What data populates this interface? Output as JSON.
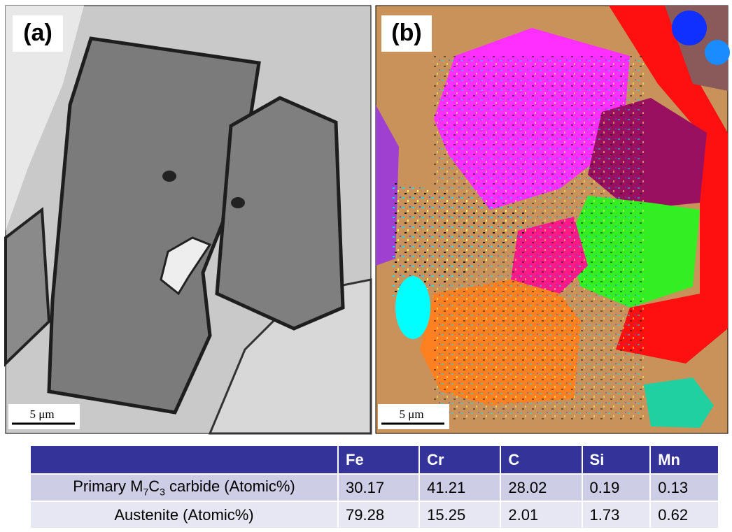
{
  "panels": [
    {
      "label": "(a)",
      "scale_bar": "5 μm"
    },
    {
      "label": "(b)",
      "scale_bar": "5 μm"
    }
  ],
  "table": {
    "columns": [
      "Fe",
      "Cr",
      "C",
      "Si",
      "Mn"
    ],
    "rows": [
      {
        "label": [
          "Primary M",
          "7",
          "C",
          "3",
          " carbide (Atomic%)"
        ],
        "values": [
          30.17,
          41.21,
          28.02,
          0.19,
          0.13
        ]
      },
      {
        "label": [
          "Austenite (Atomic%)"
        ],
        "values": [
          79.28,
          15.25,
          2.01,
          1.73,
          0.62
        ]
      }
    ]
  }
}
